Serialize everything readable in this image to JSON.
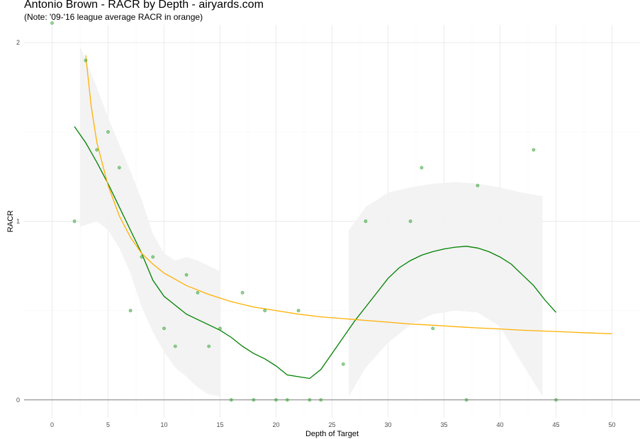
{
  "chart_data": {
    "type": "scatter",
    "title": "Antonio Brown - RACR by Depth - airyards.com",
    "subtitle": "(Note: '09-'16 league average RACR in orange)",
    "xlabel": "Depth of Target",
    "ylabel": "RACR",
    "xlim": [
      -2.5,
      52.5
    ],
    "ylim": [
      -0.1,
      2.1
    ],
    "xticks": [
      0,
      5,
      10,
      15,
      20,
      25,
      30,
      35,
      40,
      45,
      50
    ],
    "yticks": [
      0,
      1,
      2
    ],
    "grid": true,
    "colors": {
      "points": "#2ca02c",
      "smooth": "#008000",
      "league": "#ffb000",
      "ribbon": "#f2f2f2",
      "grid": "#ebebeb"
    },
    "points": [
      {
        "x": 0,
        "y": 2.11
      },
      {
        "x": 2,
        "y": 1.0
      },
      {
        "x": 3,
        "y": 1.9
      },
      {
        "x": 4,
        "y": 1.4
      },
      {
        "x": 5,
        "y": 1.5
      },
      {
        "x": 6,
        "y": 1.3
      },
      {
        "x": 7,
        "y": 0.5
      },
      {
        "x": 8,
        "y": 0.8
      },
      {
        "x": 9,
        "y": 0.8
      },
      {
        "x": 10,
        "y": 0.4
      },
      {
        "x": 11,
        "y": 0.3
      },
      {
        "x": 12,
        "y": 0.7
      },
      {
        "x": 13,
        "y": 0.6
      },
      {
        "x": 14,
        "y": 0.3
      },
      {
        "x": 15,
        "y": 0.4
      },
      {
        "x": 16,
        "y": 0.0
      },
      {
        "x": 17,
        "y": 0.6
      },
      {
        "x": 18,
        "y": 0.0
      },
      {
        "x": 19,
        "y": 0.5
      },
      {
        "x": 20,
        "y": 0.0
      },
      {
        "x": 21,
        "y": 0.0
      },
      {
        "x": 22,
        "y": 0.5
      },
      {
        "x": 23,
        "y": 0.0
      },
      {
        "x": 24,
        "y": 0.0
      },
      {
        "x": 26,
        "y": 0.2
      },
      {
        "x": 28,
        "y": 1.0
      },
      {
        "x": 32,
        "y": 1.0
      },
      {
        "x": 33,
        "y": 1.3
      },
      {
        "x": 34,
        "y": 0.4
      },
      {
        "x": 37,
        "y": 0.0
      },
      {
        "x": 38,
        "y": 1.2
      },
      {
        "x": 43,
        "y": 1.4
      },
      {
        "x": 45,
        "y": 0.0
      }
    ],
    "series": [
      {
        "x": [
          2,
          3,
          4,
          5,
          6,
          7,
          8,
          9,
          10,
          11,
          12,
          13,
          14,
          15,
          16,
          17,
          18,
          19,
          20,
          21,
          22,
          23,
          24,
          25,
          26,
          27,
          28,
          29,
          30,
          31,
          32,
          33,
          34,
          35,
          36,
          37,
          38,
          39,
          40,
          41,
          42,
          43,
          44,
          45
        ],
        "values": [
          1.53,
          1.44,
          1.33,
          1.21,
          1.08,
          0.95,
          0.82,
          0.67,
          0.58,
          0.53,
          0.48,
          0.45,
          0.42,
          0.39,
          0.35,
          0.3,
          0.26,
          0.23,
          0.19,
          0.14,
          0.13,
          0.12,
          0.17,
          0.26,
          0.35,
          0.44,
          0.52,
          0.6,
          0.68,
          0.74,
          0.78,
          0.81,
          0.83,
          0.845,
          0.855,
          0.86,
          0.85,
          0.83,
          0.8,
          0.76,
          0.7,
          0.64,
          0.56,
          0.49
        ]
      },
      {
        "x": [
          3,
          3.5,
          4,
          5,
          6,
          7,
          8,
          9,
          10,
          12,
          14,
          16,
          18,
          20,
          22,
          24,
          26,
          28,
          30,
          32,
          34,
          36,
          38,
          40,
          42,
          44,
          46,
          48,
          50
        ],
        "values": [
          1.93,
          1.64,
          1.44,
          1.2,
          1.03,
          0.91,
          0.82,
          0.76,
          0.71,
          0.64,
          0.59,
          0.55,
          0.52,
          0.5,
          0.48,
          0.465,
          0.455,
          0.445,
          0.435,
          0.425,
          0.418,
          0.41,
          0.403,
          0.397,
          0.39,
          0.385,
          0.38,
          0.375,
          0.37
        ]
      }
    ],
    "ribbons": [
      {
        "x": [
          2.5,
          4,
          5,
          6,
          7,
          8,
          9,
          10,
          11,
          12,
          13,
          14,
          15
        ],
        "upper": [
          1.98,
          1.75,
          1.58,
          1.43,
          1.28,
          1.12,
          0.93,
          0.82,
          0.78,
          0.8,
          0.78,
          0.75,
          0.72
        ],
        "lower": [
          0.97,
          1.0,
          0.95,
          0.85,
          0.71,
          0.52,
          0.38,
          0.27,
          0.18,
          0.13,
          0.07,
          0.03,
          0.02
        ]
      },
      {
        "x": [
          26.5,
          28,
          30,
          32,
          34,
          36,
          38,
          40,
          42,
          43.8
        ],
        "upper": [
          0.95,
          1.08,
          1.16,
          1.19,
          1.21,
          1.22,
          1.21,
          1.19,
          1.16,
          1.14
        ],
        "lower": [
          0.02,
          0.18,
          0.32,
          0.42,
          0.48,
          0.5,
          0.49,
          0.41,
          0.2,
          0.02
        ]
      }
    ]
  }
}
